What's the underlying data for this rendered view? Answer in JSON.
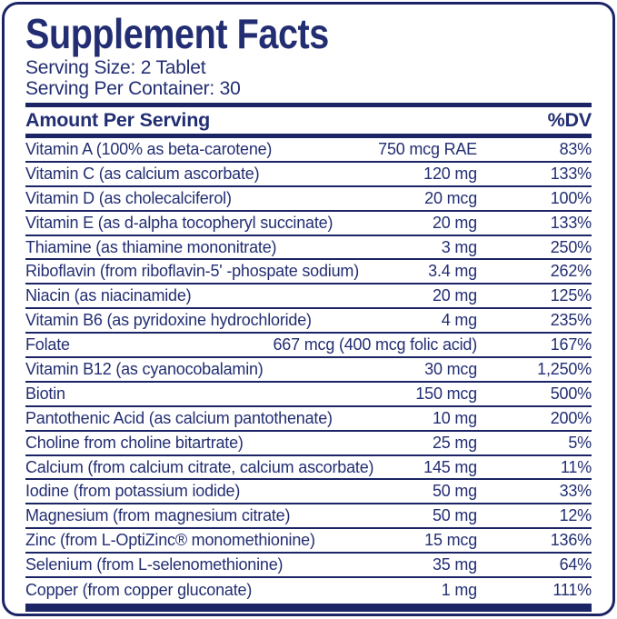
{
  "label": {
    "title": "Supplement Facts",
    "serving_size": "Serving Size: 2 Tablet",
    "serving_per_container": "Serving Per Container: 30",
    "column_header": {
      "left": "Amount Per Serving",
      "right": "%DV"
    },
    "rows": [
      {
        "name": "Vitamin A (100% as beta-carotene)",
        "amount": "750 mcg RAE",
        "dv": "83%"
      },
      {
        "name": "Vitamin C (as calcium ascorbate)",
        "amount": "120 mg",
        "dv": "133%"
      },
      {
        "name": "Vitamin D (as cholecalciferol)",
        "amount": "20 mcg",
        "dv": "100%"
      },
      {
        "name": "Vitamin E (as d-alpha tocopheryl succinate)",
        "amount": "20 mg",
        "dv": "133%"
      },
      {
        "name": "Thiamine (as thiamine mononitrate)",
        "amount": "3 mg",
        "dv": "250%"
      },
      {
        "name": "Riboflavin (from riboflavin-5' -phospate sodium)",
        "amount": "3.4 mg",
        "dv": "262%"
      },
      {
        "name": "Niacin (as niacinamide)",
        "amount": "20 mg",
        "dv": "125%"
      },
      {
        "name": "Vitamin B6 (as pyridoxine hydrochloride)",
        "amount": "4 mg",
        "dv": "235%"
      },
      {
        "name": "Folate",
        "amount": "667 mcg (400 mcg folic acid)",
        "dv": "167%"
      },
      {
        "name": "Vitamin B12 (as cyanocobalamin)",
        "amount": "30 mcg",
        "dv": "1,250%"
      },
      {
        "name": "Biotin",
        "amount": "150 mcg",
        "dv": "500%"
      },
      {
        "name": "Pantothenic Acid (as calcium pantothenate)",
        "amount": "10 mg",
        "dv": "200%"
      },
      {
        "name": "Choline from choline bitartrate)",
        "amount": "25 mg",
        "dv": "5%"
      },
      {
        "name": "Calcium (from calcium citrate, calcium ascorbate)",
        "amount": "145 mg",
        "dv": "11%"
      },
      {
        "name": "Iodine (from potassium iodide)",
        "amount": "50 mg",
        "dv": "33%"
      },
      {
        "name": "Magnesium (from magnesium citrate)",
        "amount": "50 mg",
        "dv": "12%"
      },
      {
        "name": "Zinc (from L-OptiZinc® monomethionine)",
        "amount": "15 mcg",
        "dv": "136%"
      },
      {
        "name": "Selenium (from L-selenomethionine)",
        "amount": "35 mg",
        "dv": "64%"
      },
      {
        "name": "Copper (from copper gluconate)",
        "amount": "1 mg",
        "dv": "111%"
      }
    ],
    "colors": {
      "navy_text": "#232e72",
      "navy_bars": "#1b2566",
      "background": "#ffffff"
    }
  }
}
